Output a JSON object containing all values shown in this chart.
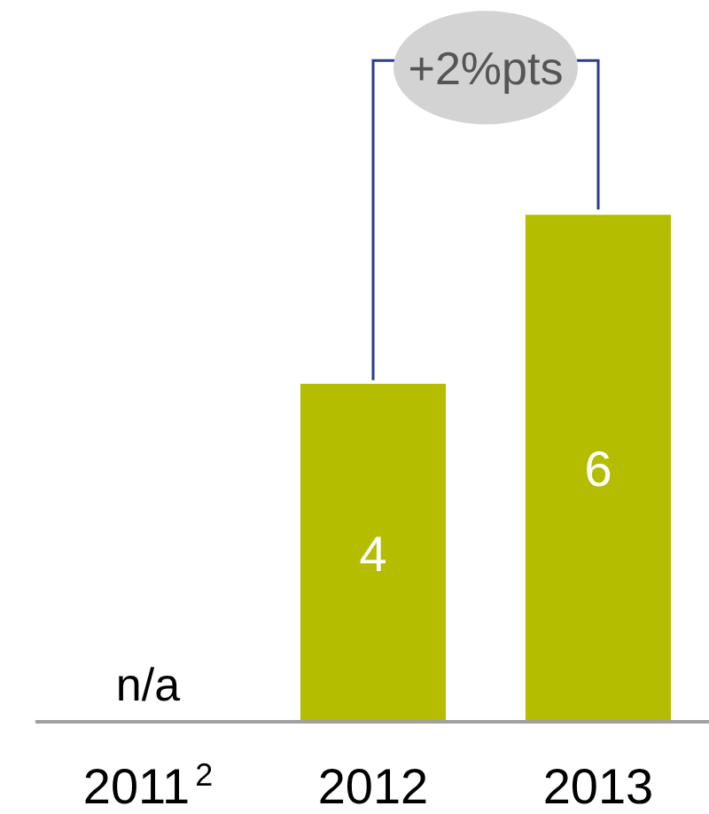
{
  "chart_data": {
    "type": "bar",
    "categories": [
      "2011$^{2}$",
      "2012",
      "2013"
    ],
    "values": [
      null,
      4,
      6
    ],
    "color": "#b5bd00",
    "ylim": [
      0,
      8.5
    ],
    "value_labels": [
      "n/a",
      "4",
      "6"
    ],
    "tick_labels": "x",
    "annotations": [
      "+2%pts"
    ]
  }
}
